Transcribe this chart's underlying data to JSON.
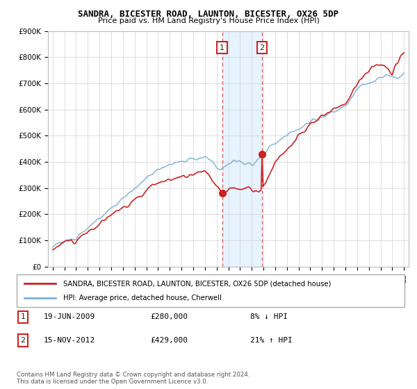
{
  "title": "SANDRA, BICESTER ROAD, LAUNTON, BICESTER, OX26 5DP",
  "subtitle": "Price paid vs. HM Land Registry's House Price Index (HPI)",
  "legend_line1": "SANDRA, BICESTER ROAD, LAUNTON, BICESTER, OX26 5DP (detached house)",
  "legend_line2": "HPI: Average price, detached house, Cherwell",
  "annotation1_label": "1",
  "annotation1_date": "19-JUN-2009",
  "annotation1_price": "£280,000",
  "annotation1_hpi": "8% ↓ HPI",
  "annotation2_label": "2",
  "annotation2_date": "15-NOV-2012",
  "annotation2_price": "£429,000",
  "annotation2_hpi": "21% ↑ HPI",
  "footer": "Contains HM Land Registry data © Crown copyright and database right 2024.\nThis data is licensed under the Open Government Licence v3.0.",
  "hpi_color": "#7bafd4",
  "property_color": "#cc2222",
  "shaded_region_color": "#ddeeff",
  "annotation_box_edge_color": "#cc2222",
  "annotation_box_text_color": "#222222",
  "ylim": [
    0,
    900000
  ],
  "yticks": [
    0,
    100000,
    200000,
    300000,
    400000,
    500000,
    600000,
    700000,
    800000,
    900000
  ],
  "ytick_labels": [
    "£0",
    "£100K",
    "£200K",
    "£300K",
    "£400K",
    "£500K",
    "£600K",
    "£700K",
    "£800K",
    "£900K"
  ],
  "sale1_year": 2009.47,
  "sale1_value": 280000,
  "sale2_year": 2012.88,
  "sale2_value": 429000
}
